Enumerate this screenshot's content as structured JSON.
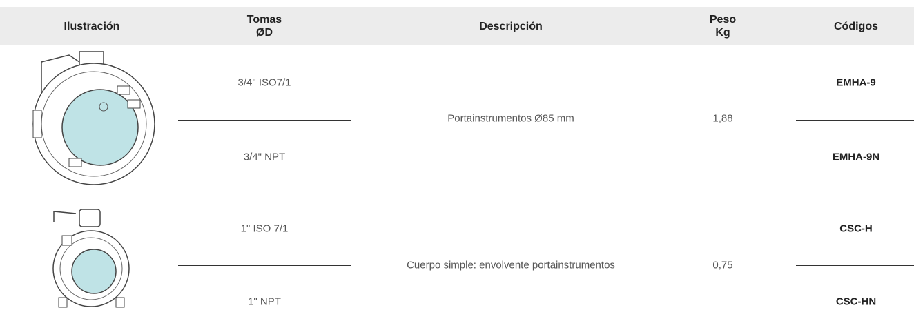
{
  "header": [
    [
      "Ilustración"
    ],
    [
      "Tomas",
      "ØD"
    ],
    [
      "Descripción"
    ],
    [
      "Peso",
      "Kg"
    ],
    [
      "Códigos"
    ]
  ],
  "rows": [
    {
      "tomas": [
        "3/4\" ISO7/1",
        "3/4\" NPT"
      ],
      "descripcion": "Portainstrumentos Ø85 mm",
      "peso": "1,88",
      "codigos": [
        "EMHA-9",
        "EMHA-9N"
      ]
    },
    {
      "tomas": [
        "1\" ISO 7/1",
        "1\" NPT"
      ],
      "descripcion": "Cuerpo simple: envolvente portainstrumentos",
      "peso": "0,75",
      "codigos": [
        "CSC-H",
        "CSC-HN"
      ]
    }
  ]
}
